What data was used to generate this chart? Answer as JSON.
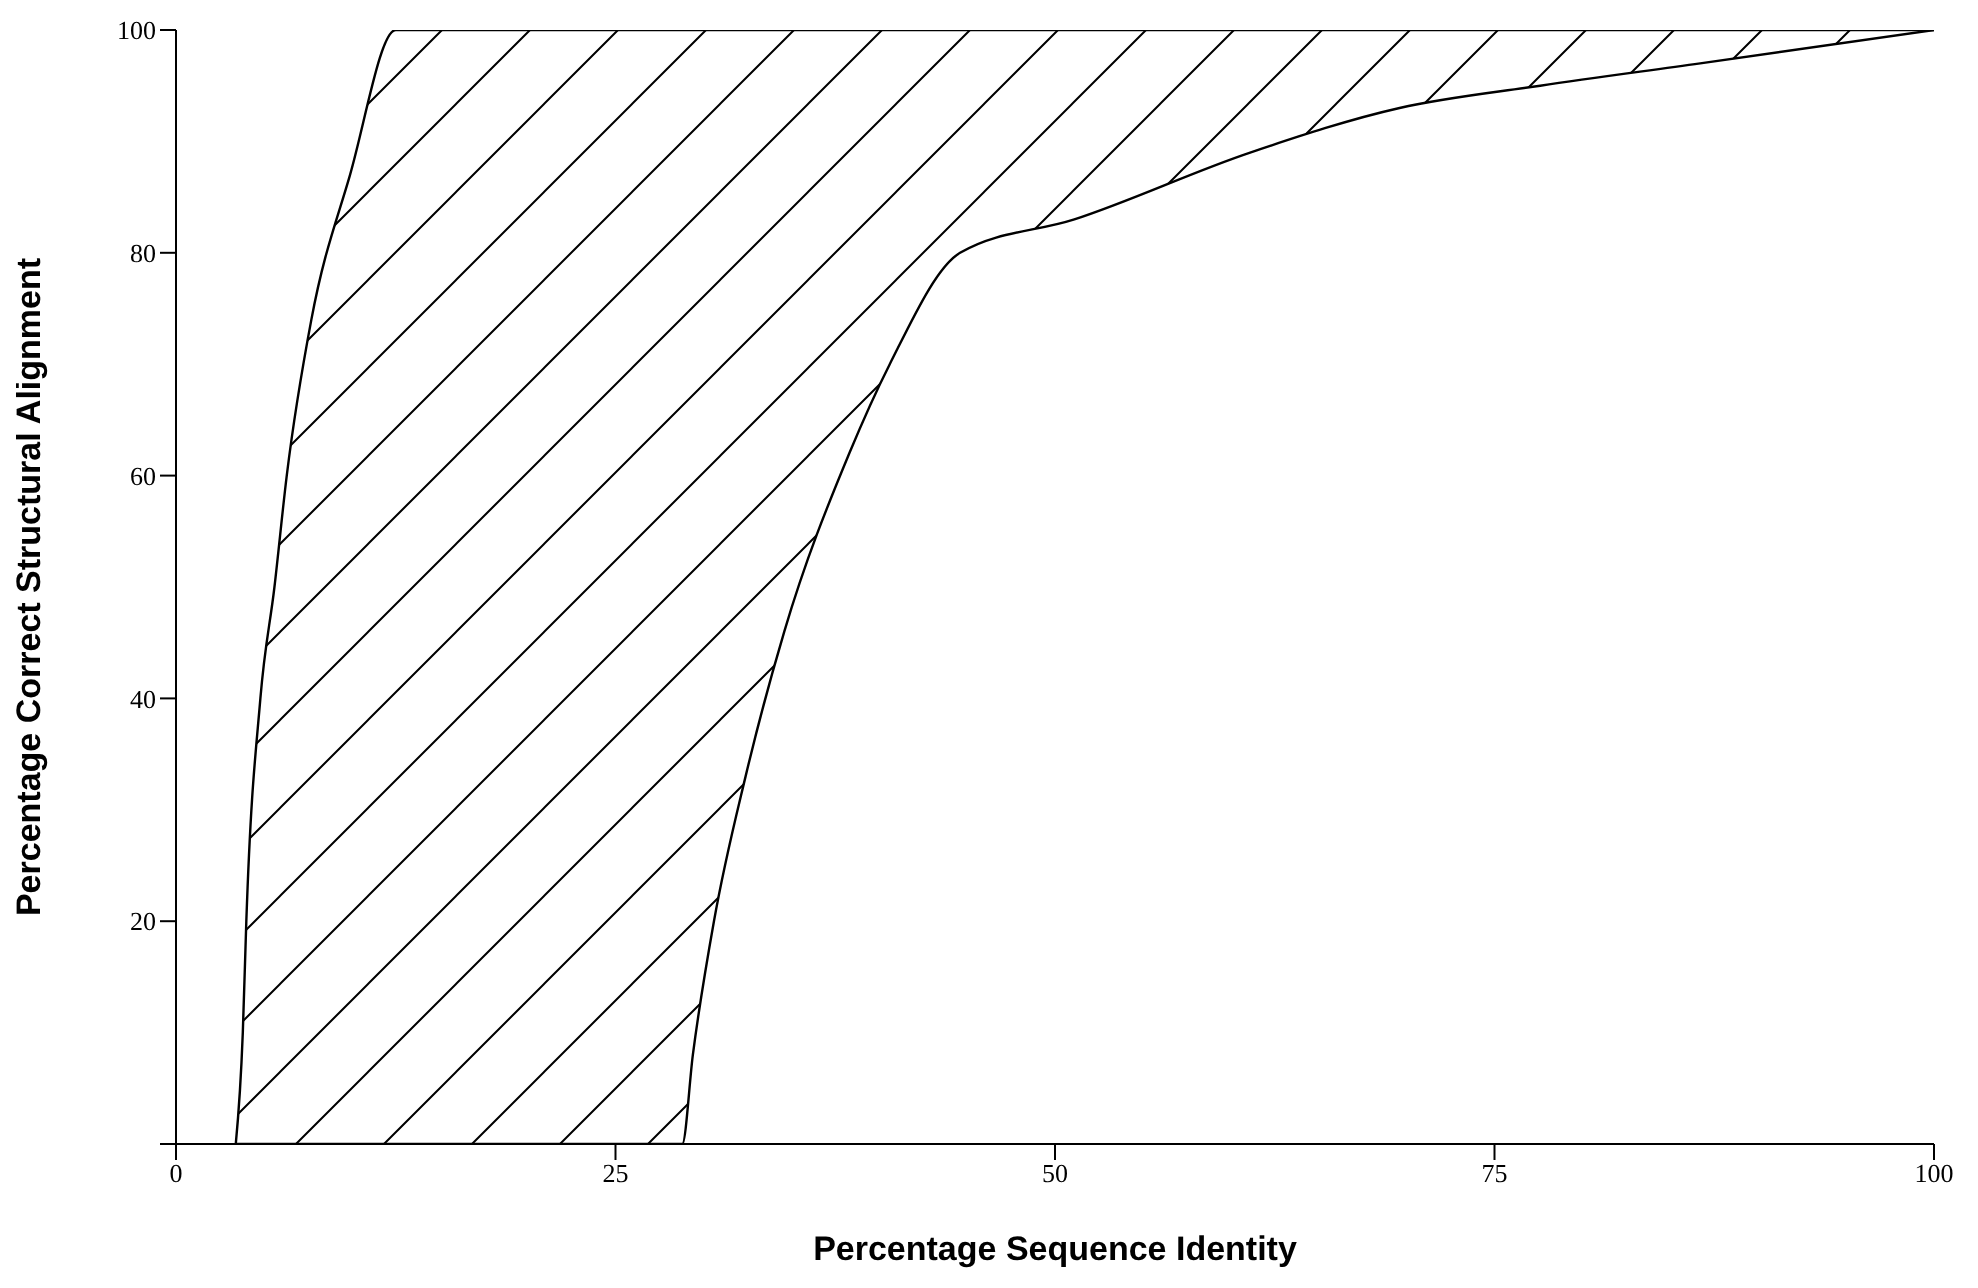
{
  "chart_data": {
    "type": "line",
    "marker": "none",
    "xlabel": "Percentage Sequence Identity",
    "ylabel": "Percentage Correct Structural Alignment",
    "x": [
      3.4,
      3.8,
      4,
      4.8,
      5.6,
      6.3,
      7.7,
      9.9,
      12.5,
      28.8,
      29.4,
      30.6,
      32.4,
      34.6,
      38.3,
      40.6,
      44.6,
      51.1,
      61.1,
      69.6,
      77.6,
      86.7,
      100
    ],
    "series": [
      {
        "color": "#000000",
        "values": [
          0,
          10,
          20,
          40,
          50,
          60,
          74,
          87,
          100,
          100,
          100,
          100,
          100,
          100,
          100,
          100,
          100,
          100,
          100,
          100,
          100,
          100,
          100
        ],
        "lower": [
          0,
          0,
          0,
          0,
          0,
          0,
          0,
          0,
          0,
          0,
          8,
          20,
          33,
          46,
          62,
          70,
          80,
          83,
          89,
          93,
          95,
          97,
          100
        ],
        "upper": [
          0,
          10,
          20,
          40,
          50,
          60,
          74,
          87,
          100,
          100,
          100,
          100,
          100,
          100,
          100,
          100,
          100,
          100,
          100,
          100,
          100,
          100,
          100
        ]
      },
      {
        "color": "#000000",
        "values": [
          0,
          0,
          0,
          0,
          0,
          0,
          0,
          0,
          0,
          0,
          8,
          20,
          33,
          46,
          62,
          70,
          80,
          83,
          89,
          93,
          95,
          97,
          100
        ]
      }
    ],
    "xlim": [
      0,
      100
    ],
    "xticks": [
      0,
      25,
      50,
      75,
      100
    ],
    "ylim": [
      0,
      100
    ],
    "yticks": [
      {
        "value": 0,
        "label": null
      },
      20,
      40,
      60,
      80,
      100
    ]
  }
}
